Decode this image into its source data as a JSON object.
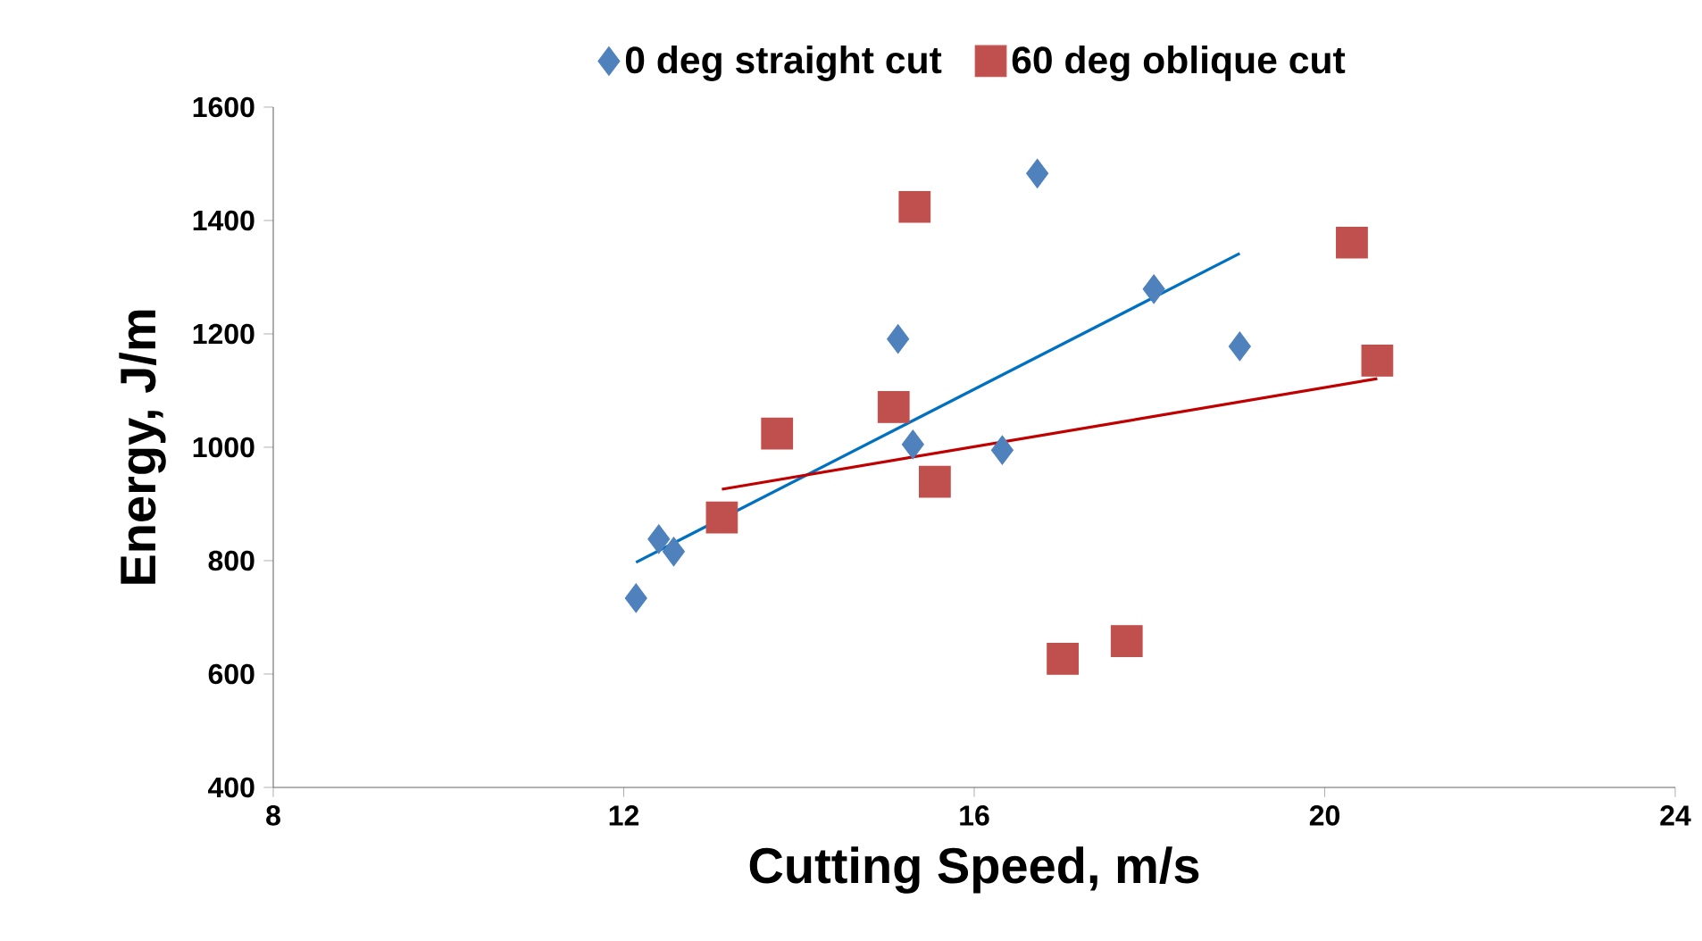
{
  "chart_data": {
    "type": "scatter",
    "xlabel": "Cutting Speed, m/s",
    "ylabel": "Energy, J/m",
    "xlim": [
      8,
      24
    ],
    "xticks": [
      8,
      12,
      16,
      20,
      24
    ],
    "ylim": [
      400,
      1600
    ],
    "yticks": [
      400,
      600,
      800,
      1000,
      1200,
      1400,
      1600
    ],
    "legend": "top",
    "series": [
      {
        "name": "0 deg straight cut",
        "color": "#4f81bd",
        "marker": "diamond",
        "x": [
          12.14,
          12.4,
          12.57,
          15.13,
          15.3,
          16.32,
          16.72,
          18.05,
          19.03
        ],
        "values": [
          734,
          838,
          816,
          1191,
          1005,
          995,
          1483,
          1279,
          1178
        ]
      },
      {
        "name": "60 deg oblique cut",
        "color": "#c0504d",
        "marker": "square",
        "x": [
          13.12,
          13.75,
          15.08,
          15.55,
          15.32,
          17.01,
          17.74,
          20.31,
          20.6
        ],
        "values": [
          876,
          1024,
          1071,
          939,
          1424,
          627,
          658,
          1361,
          1153
        ]
      },
      {
        "type": "line",
        "color": "#0070c0",
        "marker": "none",
        "x": [
          12.14,
          19.03
        ],
        "values": [
          797,
          1342
        ]
      },
      {
        "type": "line",
        "color": "#c00000",
        "marker": "none",
        "x": [
          13.12,
          20.6
        ],
        "values": [
          926,
          1121
        ]
      }
    ]
  }
}
